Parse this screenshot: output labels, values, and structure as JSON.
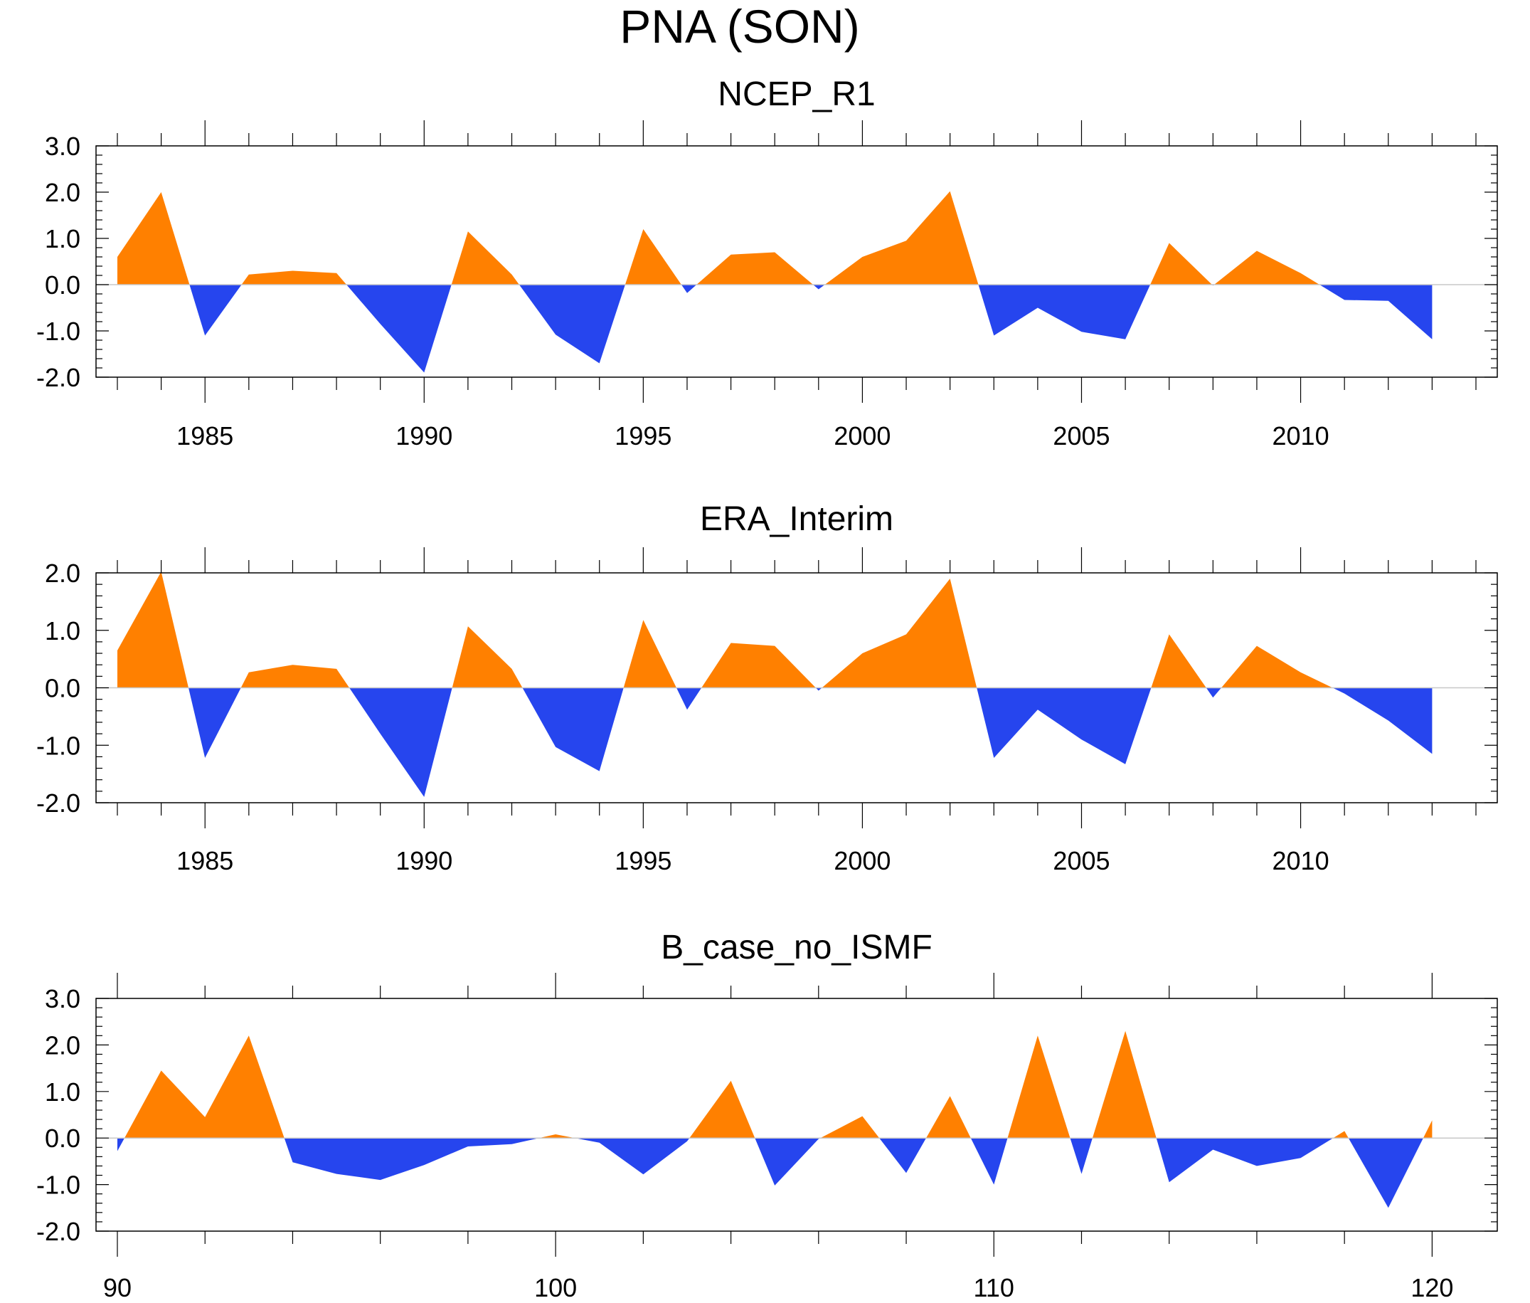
{
  "title": "PNA (SON)",
  "colors": {
    "positive": "#ff8000",
    "negative": "#2645ee",
    "zero_line": "#c8c8c8",
    "axis": "#000000"
  },
  "chart_data": [
    {
      "type": "area",
      "title": "NCEP_R1",
      "xlabel": "",
      "ylabel": "",
      "x": [
        1983,
        1984,
        1985,
        1986,
        1987,
        1988,
        1989,
        1990,
        1991,
        1992,
        1993,
        1994,
        1995,
        1996,
        1997,
        1998,
        1999,
        2000,
        2001,
        2002,
        2003,
        2004,
        2005,
        2006,
        2007,
        2008,
        2009,
        2010,
        2011,
        2012,
        2013
      ],
      "values": [
        0.6,
        2.0,
        -1.1,
        0.22,
        0.3,
        0.25,
        -0.85,
        -1.9,
        1.15,
        0.22,
        -1.08,
        -1.7,
        1.2,
        -0.18,
        0.65,
        0.7,
        -0.1,
        0.6,
        0.95,
        2.02,
        -1.1,
        -0.5,
        -1.02,
        -1.18,
        0.9,
        -0.02,
        0.73,
        0.25,
        -0.33,
        -0.35,
        -1.18
      ],
      "xlim": [
        1983,
        2014
      ],
      "ylim": [
        -2.0,
        3.0
      ],
      "xticks": [
        1985,
        1990,
        1995,
        2000,
        2005,
        2010
      ],
      "xticklabels": [
        "1985",
        "1990",
        "1995",
        "2000",
        "2005",
        "2010"
      ],
      "yticks": [
        3.0,
        2.0,
        1.0,
        0.0,
        -1.0,
        -2.0
      ],
      "yticklabels": [
        "3.0",
        "2.0",
        "1.0",
        "0.0",
        "-1.0",
        "-2.0"
      ],
      "grid": false
    },
    {
      "type": "area",
      "title": "ERA_Interim",
      "xlabel": "",
      "ylabel": "",
      "x": [
        1983,
        1984,
        1985,
        1986,
        1987,
        1988,
        1989,
        1990,
        1991,
        1992,
        1993,
        1994,
        1995,
        1996,
        1997,
        1998,
        1999,
        2000,
        2001,
        2002,
        2003,
        2004,
        2005,
        2006,
        2007,
        2008,
        2009,
        2010,
        2011,
        2012,
        2013
      ],
      "values": [
        0.65,
        2.02,
        -1.22,
        0.27,
        0.4,
        0.33,
        -0.8,
        -1.9,
        1.07,
        0.33,
        -1.03,
        -1.45,
        1.18,
        -0.38,
        0.78,
        0.73,
        -0.05,
        0.6,
        0.93,
        1.9,
        -1.22,
        -0.38,
        -0.9,
        -1.33,
        0.93,
        -0.17,
        0.73,
        0.27,
        -0.1,
        -0.57,
        -1.15
      ],
      "xlim": [
        1983,
        2014
      ],
      "ylim": [
        -2.0,
        2.0
      ],
      "xticks": [
        1985,
        1990,
        1995,
        2000,
        2005,
        2010
      ],
      "xticklabels": [
        "1985",
        "1990",
        "1995",
        "2000",
        "2005",
        "2010"
      ],
      "yticks": [
        2.0,
        1.0,
        0.0,
        -1.0,
        -2.0
      ],
      "yticklabels": [
        "2.0",
        "1.0",
        "0.0",
        "-1.0",
        "-2.0"
      ],
      "grid": false
    },
    {
      "type": "area",
      "title": "B_case_no_ISMF",
      "xlabel": "",
      "ylabel": "",
      "x": [
        90,
        91,
        92,
        93,
        94,
        95,
        96,
        97,
        98,
        99,
        100,
        101,
        102,
        103,
        104,
        105,
        106,
        107,
        108,
        109,
        110,
        111,
        112,
        113,
        114,
        115,
        116,
        117,
        118,
        119,
        120
      ],
      "values": [
        -0.28,
        1.45,
        0.45,
        2.2,
        -0.52,
        -0.77,
        -0.9,
        -0.58,
        -0.18,
        -0.13,
        0.08,
        -0.1,
        -0.78,
        -0.07,
        1.23,
        -1.02,
        -0.02,
        0.47,
        -0.75,
        0.9,
        -1.0,
        2.2,
        -0.77,
        2.3,
        -0.95,
        -0.25,
        -0.6,
        -0.43,
        0.15,
        -1.5,
        0.38
      ],
      "xlim": [
        90,
        121
      ],
      "ylim": [
        -2.0,
        3.0
      ],
      "xticks": [
        90,
        100,
        110,
        120
      ],
      "xticklabels": [
        "90",
        "100",
        "110",
        "120"
      ],
      "yticks": [
        3.0,
        2.0,
        1.0,
        0.0,
        -1.0,
        -2.0
      ],
      "yticklabels": [
        "3.0",
        "2.0",
        "1.0",
        "0.0",
        "-1.0",
        "-2.0"
      ],
      "grid": false
    }
  ]
}
